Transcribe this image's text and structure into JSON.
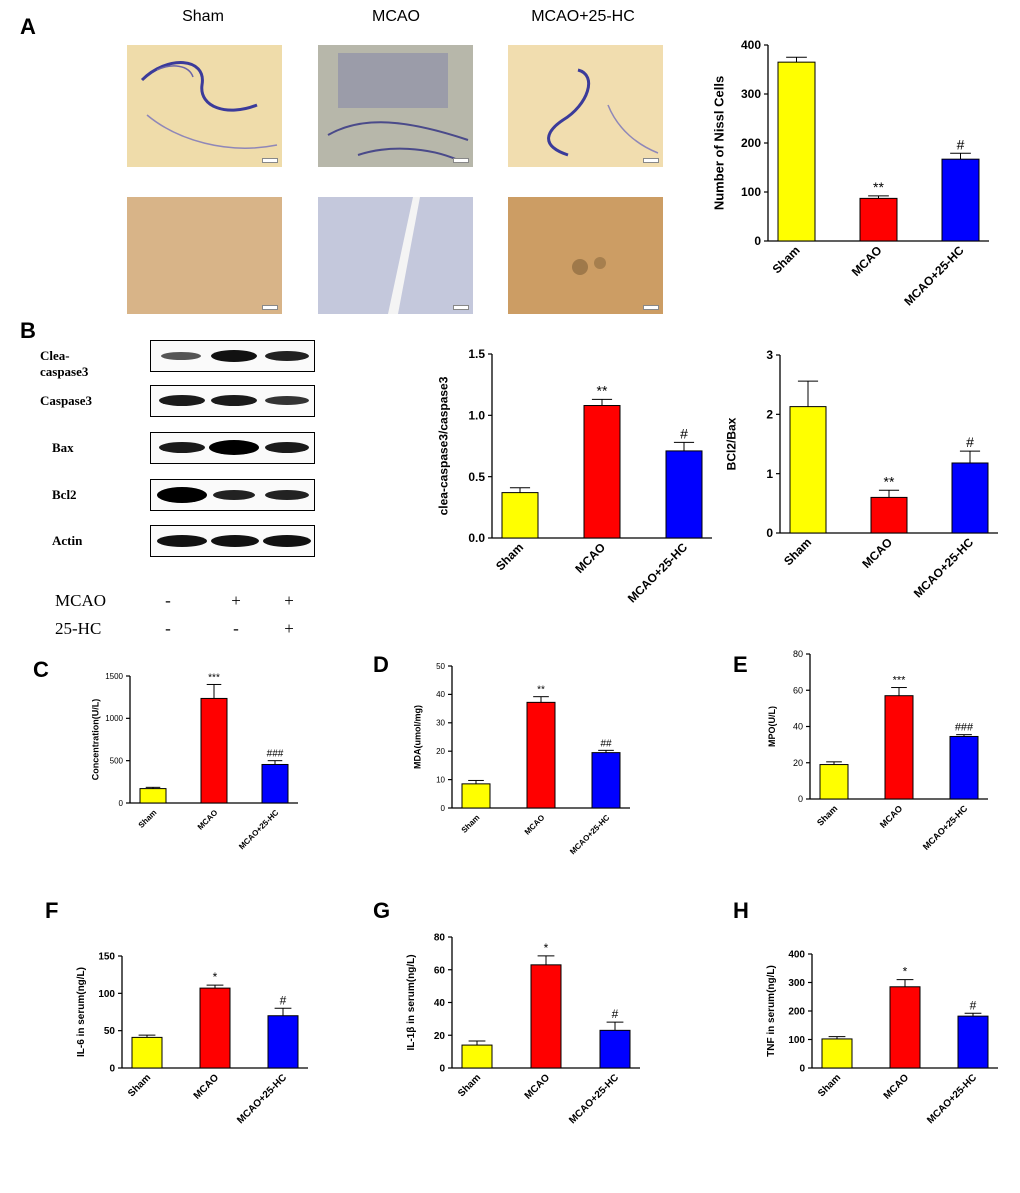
{
  "panels": {
    "a": "A",
    "b": "B",
    "c": "C",
    "d": "D",
    "e": "E",
    "f": "F",
    "g": "G",
    "h": "H"
  },
  "micrographs": {
    "columns": [
      "Sham",
      "MCAO",
      "MCAO+25-HC"
    ],
    "description_colors": {
      "sham_low": "#efdcaa",
      "mcao_low": "#b7b7aa",
      "hc_low": "#f1ddaf",
      "sham_high": "#d8b488",
      "mcao_high": "#c4c8dc",
      "hc_high": "#cc9d64",
      "stain": "#3b3b9a"
    }
  },
  "western_blot": {
    "rows": [
      {
        "label": "Clea-caspase3"
      },
      {
        "label": "Caspase3"
      },
      {
        "label": "Bax"
      },
      {
        "label": "Bcl2"
      },
      {
        "label": "Actin"
      }
    ],
    "conditions": [
      {
        "label": "MCAO",
        "marks": [
          "-",
          "+",
          "+"
        ]
      },
      {
        "label": "25-HC",
        "marks": [
          "-",
          "-",
          "+"
        ]
      }
    ]
  },
  "chart_data": [
    {
      "id": "nissl",
      "type": "bar",
      "categories": [
        "Sham",
        "MCAO",
        "MCAO+25-HC"
      ],
      "values": [
        365,
        87,
        167
      ],
      "errors": [
        10,
        5,
        12
      ],
      "annotations": [
        "",
        "**",
        "#"
      ],
      "ylabel": "Number of Nissl Cells",
      "ylim": [
        0,
        400
      ],
      "yticks": [
        "0",
        "100",
        "200",
        "300",
        "400"
      ],
      "colors": [
        "#ffff00",
        "#ff0000",
        "#0000ff"
      ]
    },
    {
      "id": "casp",
      "type": "bar",
      "categories": [
        "Sham",
        "MCAO",
        "MCAO+25-HC"
      ],
      "values": [
        0.37,
        1.08,
        0.71
      ],
      "errors": [
        0.04,
        0.05,
        0.07
      ],
      "annotations": [
        "",
        "**",
        "#"
      ],
      "ylabel": "clea-caspase3/caspase3",
      "ylim": [
        0,
        1.5
      ],
      "yticks": [
        "0.0",
        "0.5",
        "1.0",
        "1.5"
      ],
      "colors": [
        "#ffff00",
        "#ff0000",
        "#0000ff"
      ]
    },
    {
      "id": "bcl",
      "type": "bar",
      "categories": [
        "Sham",
        "MCAO",
        "MCAO+25-HC"
      ],
      "values": [
        2.13,
        0.6,
        1.18
      ],
      "errors": [
        0.43,
        0.12,
        0.2
      ],
      "annotations": [
        "",
        "**",
        "#"
      ],
      "ylabel": "BCl2/Bax",
      "ylim": [
        0,
        3
      ],
      "yticks": [
        "0",
        "1",
        "2",
        "3"
      ],
      "colors": [
        "#ffff00",
        "#ff0000",
        "#0000ff"
      ]
    },
    {
      "id": "conc",
      "type": "bar",
      "categories": [
        "Sham",
        "MCAO",
        "MCAO+25-HC"
      ],
      "values": [
        170,
        1235,
        455
      ],
      "errors": [
        15,
        165,
        45
      ],
      "annotations": [
        "",
        "***",
        "###"
      ],
      "ylabel": "Concentration(U/L)",
      "ylim": [
        0,
        1500
      ],
      "yticks": [
        "0",
        "500",
        "1000",
        "1500"
      ],
      "colors": [
        "#ffff00",
        "#ff0000",
        "#0000ff"
      ]
    },
    {
      "id": "mda",
      "type": "bar",
      "categories": [
        "Sham",
        "MCAO",
        "MCAO+25-HC"
      ],
      "values": [
        8.5,
        37.2,
        19.5
      ],
      "errors": [
        1.2,
        2.0,
        0.8
      ],
      "annotations": [
        "",
        "**",
        "##"
      ],
      "ylabel": "MDA(umol/mg)",
      "ylim": [
        0,
        50
      ],
      "yticks": [
        "0",
        "10",
        "20",
        "30",
        "40",
        "50"
      ],
      "colors": [
        "#ffff00",
        "#ff0000",
        "#0000ff"
      ]
    },
    {
      "id": "mpo",
      "type": "bar",
      "categories": [
        "Sham",
        "MCAO",
        "MCAO+25-HC"
      ],
      "values": [
        19,
        57,
        34.5
      ],
      "errors": [
        1.5,
        4.5,
        1.0
      ],
      "annotations": [
        "",
        "***",
        "###"
      ],
      "ylabel": "MPO(U/L)",
      "ylim": [
        0,
        80
      ],
      "yticks": [
        "0",
        "20",
        "40",
        "60",
        "80"
      ],
      "colors": [
        "#ffff00",
        "#ff0000",
        "#0000ff"
      ]
    },
    {
      "id": "il6",
      "type": "bar",
      "categories": [
        "Sham",
        "MCAO",
        "MCAO+25-HC"
      ],
      "values": [
        41,
        107,
        70
      ],
      "errors": [
        3,
        4,
        10
      ],
      "annotations": [
        "",
        "*",
        "#"
      ],
      "ylabel": "IL-6 in serum(ng/L)",
      "ylim": [
        0,
        150
      ],
      "yticks": [
        "0",
        "50",
        "100",
        "150"
      ],
      "colors": [
        "#ffff00",
        "#ff0000",
        "#0000ff"
      ]
    },
    {
      "id": "il1b",
      "type": "bar",
      "categories": [
        "Sham",
        "MCAO",
        "MCAO+25-HC"
      ],
      "values": [
        14,
        63,
        23
      ],
      "errors": [
        2.5,
        5.5,
        5
      ],
      "annotations": [
        "",
        "*",
        "#"
      ],
      "ylabel": "IL-1β in serum(ng/L)",
      "ylim": [
        0,
        80
      ],
      "yticks": [
        "0",
        "20",
        "40",
        "60",
        "80"
      ],
      "colors": [
        "#ffff00",
        "#ff0000",
        "#0000ff"
      ]
    },
    {
      "id": "tnf",
      "type": "bar",
      "categories": [
        "Sham",
        "MCAO",
        "MCAO+25-HC"
      ],
      "values": [
        102,
        285,
        182
      ],
      "errors": [
        8,
        25,
        10
      ],
      "annotations": [
        "",
        "*",
        "#"
      ],
      "ylabel": "TNF in serum(ng/L)",
      "ylim": [
        0,
        400
      ],
      "yticks": [
        "0",
        "100",
        "200",
        "300",
        "400"
      ],
      "colors": [
        "#ffff00",
        "#ff0000",
        "#0000ff"
      ]
    }
  ]
}
